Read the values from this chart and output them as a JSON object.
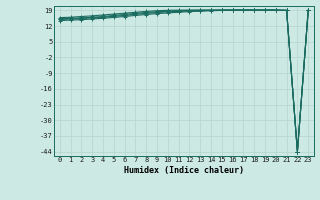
{
  "xlabel": "Humidex (Indice chaleur)",
  "bg_color": "#cceae3",
  "grid_color": "#b8d8d0",
  "line_color": "#1a6b60",
  "xlim": [
    -0.5,
    23.5
  ],
  "ylim": [
    -46,
    21
  ],
  "yticks": [
    19,
    12,
    5,
    -2,
    -9,
    -16,
    -23,
    -30,
    -37,
    -44
  ],
  "xticks": [
    0,
    1,
    2,
    3,
    4,
    5,
    6,
    7,
    8,
    9,
    10,
    11,
    12,
    13,
    14,
    15,
    16,
    17,
    18,
    19,
    20,
    21,
    22,
    23
  ],
  "lines": [
    [
      15.0,
      15.2,
      15.4,
      15.7,
      16.0,
      16.4,
      16.8,
      17.3,
      17.7,
      18.1,
      18.4,
      18.6,
      18.8,
      18.9,
      19.0,
      19.1,
      19.15,
      19.2,
      19.2,
      19.2,
      19.15,
      19.0,
      -44.0,
      19.0
    ],
    [
      15.3,
      15.5,
      15.7,
      16.0,
      16.3,
      16.8,
      17.2,
      17.7,
      18.1,
      18.4,
      18.7,
      18.9,
      19.0,
      19.1,
      19.15,
      19.2,
      19.2,
      19.2,
      19.2,
      19.2,
      19.2,
      19.1,
      -44.0,
      19.1
    ],
    [
      15.8,
      16.0,
      16.3,
      16.6,
      17.0,
      17.4,
      17.8,
      18.2,
      18.6,
      18.9,
      19.1,
      19.15,
      19.2,
      19.2,
      19.2,
      19.2,
      19.2,
      19.2,
      19.2,
      19.2,
      19.2,
      19.1,
      -44.0,
      19.1
    ],
    [
      14.5,
      14.7,
      14.9,
      15.2,
      15.5,
      15.9,
      16.3,
      16.8,
      17.2,
      17.6,
      17.9,
      18.2,
      18.5,
      18.7,
      18.9,
      19.0,
      19.05,
      19.1,
      19.1,
      19.1,
      19.1,
      19.0,
      -44.0,
      19.0
    ]
  ],
  "marker": "+",
  "markersize": 2.5,
  "linewidth": 0.8,
  "tick_fontsize": 5.0,
  "xlabel_fontsize": 6.0
}
